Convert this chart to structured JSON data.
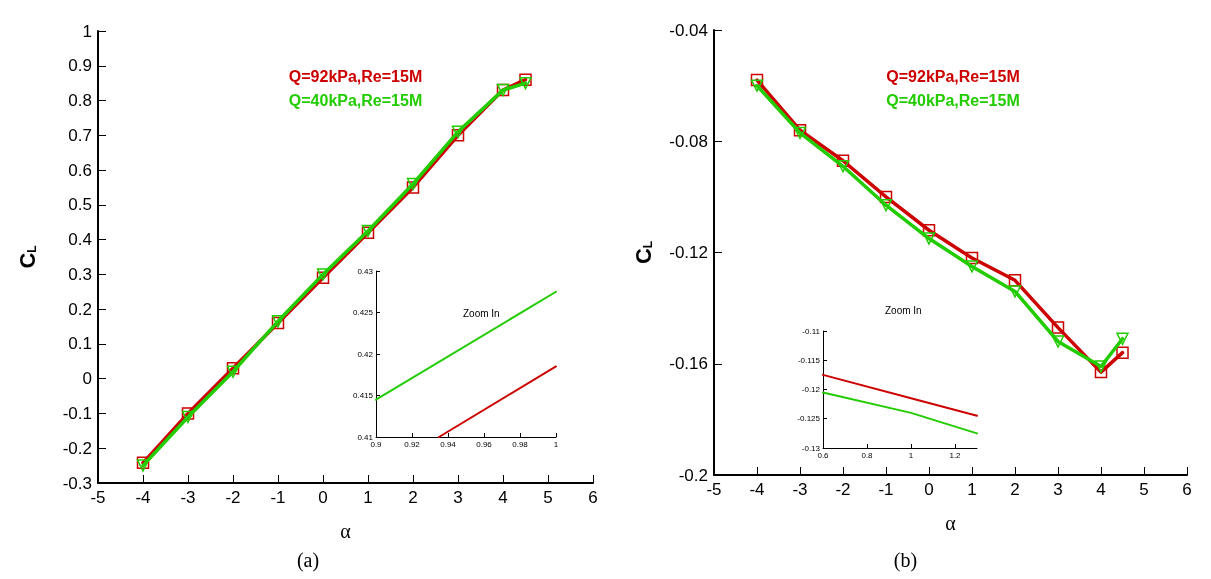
{
  "chart_data": [
    {
      "type": "line",
      "xlabel": "α",
      "ylabel": "C$_{L}$",
      "annotations": [
        "(a)"
      ],
      "x": [
        -4,
        -3,
        -2,
        -1,
        0,
        1,
        2,
        3,
        4,
        4.5
      ],
      "xlim": [
        -5,
        6
      ],
      "xticks": [
        -5,
        -4,
        -3,
        -2,
        -1,
        0,
        1,
        2,
        3,
        4,
        5,
        6
      ],
      "ylim": [
        -0.3,
        1
      ],
      "yticks": [
        -0.3,
        -0.2,
        -0.1,
        0,
        0.1,
        0.2,
        0.3,
        0.4,
        0.5,
        0.6,
        0.7,
        0.8,
        0.9,
        1
      ],
      "grid": false,
      "legend": "top",
      "line_style": "solid",
      "series": [
        {
          "name": "Q=92kPa,Re=15M",
          "color": "#cc0000",
          "marker": "square",
          "values": [
            -0.242,
            -0.1,
            0.03,
            0.16,
            0.29,
            0.42,
            0.55,
            0.7,
            0.83,
            0.86
          ]
        },
        {
          "name": "Q=40kPa,Re=15M",
          "color": "#22cc00",
          "marker": "triangle",
          "values": [
            -0.25,
            -0.11,
            0.02,
            0.165,
            0.3,
            0.425,
            0.56,
            0.71,
            0.83,
            0.85
          ]
        }
      ]
    },
    {
      "type": "line",
      "title": "Zoom In",
      "xlim": [
        0.9,
        1
      ],
      "xticks": [
        0.9,
        0.92,
        0.94,
        0.96,
        0.98,
        1
      ],
      "ylim": [
        0.41,
        0.43
      ],
      "yticks": [
        0.41,
        0.415,
        0.42,
        0.425,
        0.43
      ],
      "grid": false,
      "legend": false,
      "marker": "none",
      "line_style": "solid",
      "series": [
        {
          "color": "#cc0000",
          "x": [
            0.935,
            1
          ],
          "values": [
            0.41,
            0.4185
          ]
        },
        {
          "color": "#22cc00",
          "x": [
            0.9,
            1
          ],
          "values": [
            0.4145,
            0.4275
          ]
        }
      ]
    },
    {
      "type": "line",
      "xlabel": "α",
      "ylabel": "C$_{L}$",
      "annotations": [
        "(b)"
      ],
      "x": [
        -4,
        -3,
        -2,
        -1,
        0,
        1,
        2,
        3,
        4,
        4.5
      ],
      "xlim": [
        -5,
        6
      ],
      "xticks": [
        -5,
        -4,
        -3,
        -2,
        -1,
        0,
        1,
        2,
        3,
        4,
        5,
        6
      ],
      "ylim": [
        -0.2,
        -0.04
      ],
      "yticks": [
        -0.2,
        -0.16,
        -0.12,
        -0.08,
        -0.04
      ],
      "grid": false,
      "legend": "top",
      "line_style": "solid",
      "series": [
        {
          "name": "Q=92kPa,Re=15M",
          "color": "#cc0000",
          "marker": "square",
          "values": [
            -0.058,
            -0.076,
            -0.087,
            -0.1,
            -0.112,
            -0.122,
            -0.13,
            -0.147,
            -0.163,
            -0.156
          ]
        },
        {
          "name": "Q=40kPa,Re=15M",
          "color": "#22cc00",
          "marker": "triangle",
          "values": [
            -0.06,
            -0.077,
            -0.089,
            -0.103,
            -0.115,
            -0.125,
            -0.134,
            -0.152,
            -0.161,
            -0.151
          ]
        }
      ]
    },
    {
      "type": "line",
      "title": "Zoom In",
      "xlim": [
        0.6,
        1.3
      ],
      "xticks": [
        0.6,
        0.8,
        1,
        1.2
      ],
      "ylim": [
        -0.13,
        -0.11
      ],
      "yticks": [
        -0.13,
        -0.125,
        -0.12,
        -0.115,
        -0.11
      ],
      "grid": false,
      "legend": false,
      "marker": "none",
      "line_style": "solid",
      "series": [
        {
          "color": "#cc0000",
          "x": [
            0.6,
            1,
            1.3
          ],
          "values": [
            -0.1175,
            -0.1215,
            -0.1245
          ]
        },
        {
          "color": "#22cc00",
          "x": [
            0.6,
            1,
            1.3
          ],
          "values": [
            -0.1205,
            -0.124,
            -0.1275
          ]
        }
      ]
    }
  ]
}
